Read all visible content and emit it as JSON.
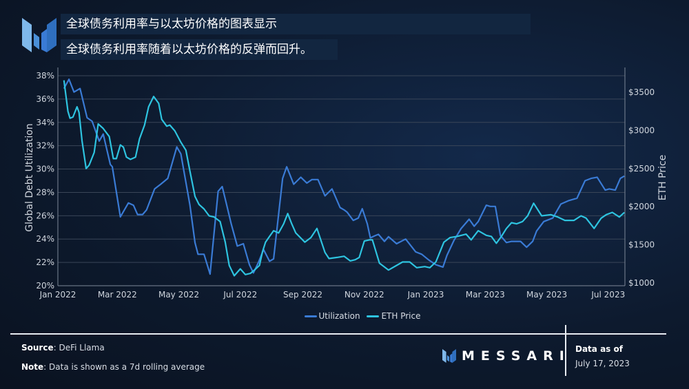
{
  "header": {
    "title": "全球债务利用率与以太坊价格的图表显示",
    "subtitle": "全球债务利用率随着以太坊价格的反弹而回升。"
  },
  "footer": {
    "source_label": "Source",
    "source_value": ": DeFi Llama",
    "note_label": "Note",
    "note_value": ": Data is shown as a 7d rolling average",
    "brand": "MESSARI",
    "data_as_of_label": "Data as of",
    "data_as_of_date": "July 17, 2023"
  },
  "colors": {
    "utilization": "#3a7bd5",
    "eth_price": "#2ec4e0",
    "background": "#0d1a2e",
    "title_box": "#122640"
  },
  "chart_data": {
    "type": "line",
    "title": "",
    "xlabel": "",
    "ylabel": "Global Debt Utilization",
    "y2label": "ETH Price",
    "ylim": [
      20,
      38
    ],
    "y2lim": [
      1000,
      3750
    ],
    "grid": true,
    "legend_placement": "bottom",
    "x_ticks": [
      {
        "date": "2022-01-01",
        "label": "Jan 2022"
      },
      {
        "date": "2022-03-01",
        "label": "Mar 2022"
      },
      {
        "date": "2022-05-01",
        "label": "May 2022"
      },
      {
        "date": "2022-07-01",
        "label": "Jul 2022"
      },
      {
        "date": "2022-09-01",
        "label": "Sep 2022"
      },
      {
        "date": "2022-11-01",
        "label": "Nov 2022"
      },
      {
        "date": "2023-01-01",
        "label": "Jan 2023"
      },
      {
        "date": "2023-03-01",
        "label": "Mar 2023"
      },
      {
        "date": "2023-05-01",
        "label": "May 2023"
      },
      {
        "date": "2023-07-01",
        "label": "Jul 2023"
      }
    ],
    "y_ticks": [
      {
        "value": 20,
        "label": "20%"
      },
      {
        "value": 22,
        "label": "22%"
      },
      {
        "value": 24,
        "label": "24%"
      },
      {
        "value": 26,
        "label": "26%"
      },
      {
        "value": 28,
        "label": "28%"
      },
      {
        "value": 30,
        "label": "30%"
      },
      {
        "value": 32,
        "label": "32%"
      },
      {
        "value": 34,
        "label": "34%"
      },
      {
        "value": 36,
        "label": "36%"
      },
      {
        "value": 38,
        "label": "38%"
      }
    ],
    "y2_ticks": [
      {
        "value": 1000,
        "label": "$1000"
      },
      {
        "value": 1500,
        "label": "$1500"
      },
      {
        "value": 2000,
        "label": "$2000"
      },
      {
        "value": 2500,
        "label": "$2500"
      },
      {
        "value": 3000,
        "label": "$3000"
      },
      {
        "value": 3500,
        "label": "$3500"
      }
    ],
    "series": [
      {
        "name": "Utilization",
        "axis": "left",
        "unit": "%",
        "points": [
          [
            "2022-01-07",
            36.9
          ],
          [
            "2022-01-12",
            37.7
          ],
          [
            "2022-01-17",
            36.6
          ],
          [
            "2022-01-23",
            36.9
          ],
          [
            "2022-01-30",
            34.4
          ],
          [
            "2022-02-04",
            34.1
          ],
          [
            "2022-02-11",
            32.4
          ],
          [
            "2022-02-15",
            33.0
          ],
          [
            "2022-02-22",
            30.4
          ],
          [
            "2022-02-24",
            30.2
          ],
          [
            "2022-03-04",
            25.9
          ],
          [
            "2022-03-12",
            27.1
          ],
          [
            "2022-03-17",
            26.9
          ],
          [
            "2022-03-21",
            26.1
          ],
          [
            "2022-03-26",
            26.1
          ],
          [
            "2022-03-30",
            26.5
          ],
          [
            "2022-04-07",
            28.3
          ],
          [
            "2022-04-13",
            28.7
          ],
          [
            "2022-04-20",
            29.2
          ],
          [
            "2022-04-29",
            31.9
          ],
          [
            "2022-05-03",
            31.3
          ],
          [
            "2022-05-12",
            26.9
          ],
          [
            "2022-05-17",
            23.7
          ],
          [
            "2022-05-20",
            22.7
          ],
          [
            "2022-05-26",
            22.7
          ],
          [
            "2022-06-01",
            21.0
          ],
          [
            "2022-06-09",
            28.1
          ],
          [
            "2022-06-13",
            28.5
          ],
          [
            "2022-06-17",
            27.1
          ],
          [
            "2022-06-22",
            25.3
          ],
          [
            "2022-06-28",
            23.4
          ],
          [
            "2022-07-04",
            23.6
          ],
          [
            "2022-07-10",
            21.8
          ],
          [
            "2022-07-14",
            21.1
          ],
          [
            "2022-07-19",
            22.0
          ],
          [
            "2022-07-24",
            23.1
          ],
          [
            "2022-07-30",
            22.1
          ],
          [
            "2022-08-03",
            22.3
          ],
          [
            "2022-08-12",
            29.2
          ],
          [
            "2022-08-16",
            30.2
          ],
          [
            "2022-08-23",
            28.7
          ],
          [
            "2022-08-30",
            29.3
          ],
          [
            "2022-09-05",
            28.8
          ],
          [
            "2022-09-10",
            29.1
          ],
          [
            "2022-09-16",
            29.1
          ],
          [
            "2022-09-23",
            27.7
          ],
          [
            "2022-09-30",
            28.3
          ],
          [
            "2022-10-08",
            26.7
          ],
          [
            "2022-10-12",
            26.5
          ],
          [
            "2022-10-15",
            26.3
          ],
          [
            "2022-10-21",
            25.6
          ],
          [
            "2022-10-26",
            25.8
          ],
          [
            "2022-10-30",
            26.6
          ],
          [
            "2022-11-04",
            25.3
          ],
          [
            "2022-11-07",
            24.1
          ],
          [
            "2022-11-12",
            24.3
          ],
          [
            "2022-11-15",
            24.4
          ],
          [
            "2022-11-21",
            23.8
          ],
          [
            "2022-11-25",
            24.2
          ],
          [
            "2022-12-03",
            23.6
          ],
          [
            "2022-12-12",
            24.0
          ],
          [
            "2022-12-22",
            22.9
          ],
          [
            "2022-12-28",
            22.7
          ],
          [
            "2023-01-04",
            22.2
          ],
          [
            "2023-01-11",
            21.8
          ],
          [
            "2023-01-18",
            21.6
          ],
          [
            "2023-01-22",
            22.6
          ],
          [
            "2023-01-29",
            23.9
          ],
          [
            "2023-02-05",
            24.9
          ],
          [
            "2023-02-13",
            25.7
          ],
          [
            "2023-02-18",
            25.1
          ],
          [
            "2023-02-22",
            25.5
          ],
          [
            "2023-03-02",
            26.9
          ],
          [
            "2023-03-06",
            26.8
          ],
          [
            "2023-03-11",
            26.8
          ],
          [
            "2023-03-16",
            24.3
          ],
          [
            "2023-03-22",
            23.7
          ],
          [
            "2023-03-27",
            23.8
          ],
          [
            "2023-04-05",
            23.8
          ],
          [
            "2023-04-11",
            23.3
          ],
          [
            "2023-04-17",
            23.8
          ],
          [
            "2023-04-21",
            24.7
          ],
          [
            "2023-04-28",
            25.5
          ],
          [
            "2023-05-07",
            25.8
          ],
          [
            "2023-05-15",
            27.0
          ],
          [
            "2023-05-23",
            27.3
          ],
          [
            "2023-05-31",
            27.5
          ],
          [
            "2023-06-08",
            29.0
          ],
          [
            "2023-06-14",
            29.2
          ],
          [
            "2023-06-20",
            29.3
          ],
          [
            "2023-06-28",
            28.2
          ],
          [
            "2023-07-02",
            28.3
          ],
          [
            "2023-07-08",
            28.2
          ],
          [
            "2023-07-13",
            29.2
          ],
          [
            "2023-07-17",
            29.4
          ]
        ]
      },
      {
        "name": "ETH Price",
        "axis": "right",
        "unit": "USD",
        "points": [
          [
            "2022-01-07",
            3657
          ],
          [
            "2022-01-11",
            3250
          ],
          [
            "2022-01-13",
            3160
          ],
          [
            "2022-01-16",
            3175
          ],
          [
            "2022-01-20",
            3310
          ],
          [
            "2022-01-22",
            3235
          ],
          [
            "2022-01-25",
            2860
          ],
          [
            "2022-01-29",
            2500
          ],
          [
            "2022-02-01",
            2545
          ],
          [
            "2022-02-06",
            2710
          ],
          [
            "2022-02-10",
            3085
          ],
          [
            "2022-02-15",
            3025
          ],
          [
            "2022-02-21",
            2920
          ],
          [
            "2022-02-25",
            2630
          ],
          [
            "2022-02-28",
            2630
          ],
          [
            "2022-03-04",
            2810
          ],
          [
            "2022-03-07",
            2780
          ],
          [
            "2022-03-10",
            2650
          ],
          [
            "2022-03-14",
            2620
          ],
          [
            "2022-03-19",
            2650
          ],
          [
            "2022-03-23",
            2890
          ],
          [
            "2022-03-28",
            3070
          ],
          [
            "2022-04-01",
            3310
          ],
          [
            "2022-04-06",
            3445
          ],
          [
            "2022-04-11",
            3355
          ],
          [
            "2022-04-14",
            3145
          ],
          [
            "2022-04-19",
            3055
          ],
          [
            "2022-04-22",
            3070
          ],
          [
            "2022-04-27",
            2995
          ],
          [
            "2022-05-03",
            2845
          ],
          [
            "2022-05-08",
            2740
          ],
          [
            "2022-05-12",
            2465
          ],
          [
            "2022-05-17",
            2135
          ],
          [
            "2022-05-21",
            2030
          ],
          [
            "2022-05-26",
            1970
          ],
          [
            "2022-05-31",
            1880
          ],
          [
            "2022-06-05",
            1865
          ],
          [
            "2022-06-11",
            1805
          ],
          [
            "2022-06-16",
            1535
          ],
          [
            "2022-06-20",
            1230
          ],
          [
            "2022-06-25",
            1095
          ],
          [
            "2022-07-01",
            1185
          ],
          [
            "2022-07-06",
            1110
          ],
          [
            "2022-07-11",
            1125
          ],
          [
            "2022-07-15",
            1170
          ],
          [
            "2022-07-20",
            1230
          ],
          [
            "2022-07-23",
            1410
          ],
          [
            "2022-07-26",
            1535
          ],
          [
            "2022-07-30",
            1610
          ],
          [
            "2022-08-03",
            1685
          ],
          [
            "2022-08-08",
            1655
          ],
          [
            "2022-08-13",
            1775
          ],
          [
            "2022-08-17",
            1910
          ],
          [
            "2022-08-21",
            1775
          ],
          [
            "2022-08-25",
            1655
          ],
          [
            "2022-09-03",
            1535
          ],
          [
            "2022-09-09",
            1595
          ],
          [
            "2022-09-15",
            1715
          ],
          [
            "2022-09-23",
            1400
          ],
          [
            "2022-09-27",
            1320
          ],
          [
            "2022-10-05",
            1335
          ],
          [
            "2022-10-12",
            1350
          ],
          [
            "2022-10-18",
            1290
          ],
          [
            "2022-10-23",
            1305
          ],
          [
            "2022-10-27",
            1335
          ],
          [
            "2022-11-01",
            1550
          ],
          [
            "2022-11-06",
            1565
          ],
          [
            "2022-11-09",
            1565
          ],
          [
            "2022-11-16",
            1260
          ],
          [
            "2022-11-25",
            1170
          ],
          [
            "2022-12-03",
            1230
          ],
          [
            "2022-12-09",
            1275
          ],
          [
            "2022-12-16",
            1275
          ],
          [
            "2022-12-23",
            1200
          ],
          [
            "2022-12-31",
            1215
          ],
          [
            "2023-01-05",
            1200
          ],
          [
            "2023-01-11",
            1275
          ],
          [
            "2023-01-19",
            1535
          ],
          [
            "2023-01-25",
            1595
          ],
          [
            "2023-02-01",
            1610
          ],
          [
            "2023-02-10",
            1640
          ],
          [
            "2023-02-15",
            1565
          ],
          [
            "2023-02-22",
            1685
          ],
          [
            "2023-03-02",
            1625
          ],
          [
            "2023-03-07",
            1610
          ],
          [
            "2023-03-12",
            1520
          ],
          [
            "2023-03-17",
            1610
          ],
          [
            "2023-03-22",
            1715
          ],
          [
            "2023-03-27",
            1790
          ],
          [
            "2023-04-01",
            1775
          ],
          [
            "2023-04-07",
            1805
          ],
          [
            "2023-04-12",
            1880
          ],
          [
            "2023-04-18",
            2045
          ],
          [
            "2023-04-26",
            1880
          ],
          [
            "2023-05-05",
            1895
          ],
          [
            "2023-05-12",
            1865
          ],
          [
            "2023-05-19",
            1820
          ],
          [
            "2023-05-28",
            1820
          ],
          [
            "2023-06-04",
            1880
          ],
          [
            "2023-06-09",
            1850
          ],
          [
            "2023-06-17",
            1715
          ],
          [
            "2023-06-24",
            1850
          ],
          [
            "2023-06-29",
            1895
          ],
          [
            "2023-07-05",
            1925
          ],
          [
            "2023-07-12",
            1865
          ],
          [
            "2023-07-17",
            1925
          ]
        ]
      }
    ]
  }
}
